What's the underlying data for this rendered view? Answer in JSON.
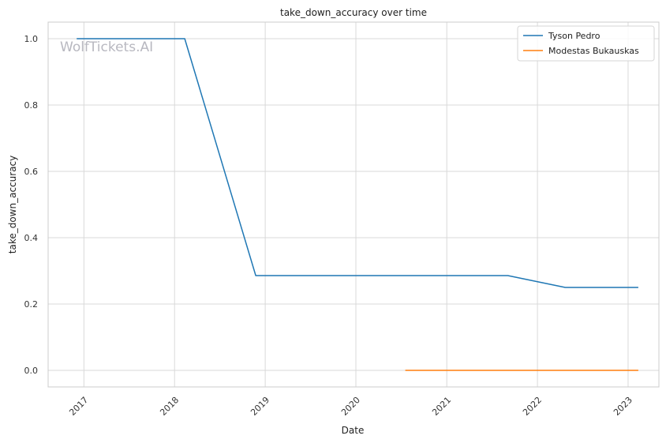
{
  "watermark": "WolfTickets.AI",
  "chart_data": {
    "type": "line",
    "title": "take_down_accuracy over time",
    "xlabel": "Date",
    "ylabel": "take_down_accuracy",
    "x_axis": "date",
    "xlim": [
      "2016-08-10",
      "2023-05-05"
    ],
    "ylim": [
      -0.05,
      1.05
    ],
    "x_ticks": [
      "2017",
      "2018",
      "2019",
      "2020",
      "2021",
      "2022",
      "2023"
    ],
    "y_ticks": [
      "0.0",
      "0.2",
      "0.4",
      "0.6",
      "0.8",
      "1.0"
    ],
    "grid": true,
    "legend_position": "top-right",
    "series": [
      {
        "name": "Tyson Pedro",
        "color": "#1f77b4",
        "points": [
          {
            "x": "2016-12-03",
            "y": 1.0
          },
          {
            "x": "2018-02-11",
            "y": 1.0
          },
          {
            "x": "2018-11-24",
            "y": 0.2857
          },
          {
            "x": "2021-09-04",
            "y": 0.2857
          },
          {
            "x": "2022-04-23",
            "y": 0.25
          },
          {
            "x": "2023-02-11",
            "y": 0.25
          }
        ]
      },
      {
        "name": "Modestas Bukauskas",
        "color": "#ff7f0e",
        "points": [
          {
            "x": "2020-07-18",
            "y": 0.0
          },
          {
            "x": "2021-09-04",
            "y": 0.0
          },
          {
            "x": "2023-02-11",
            "y": 0.0
          }
        ]
      }
    ]
  }
}
